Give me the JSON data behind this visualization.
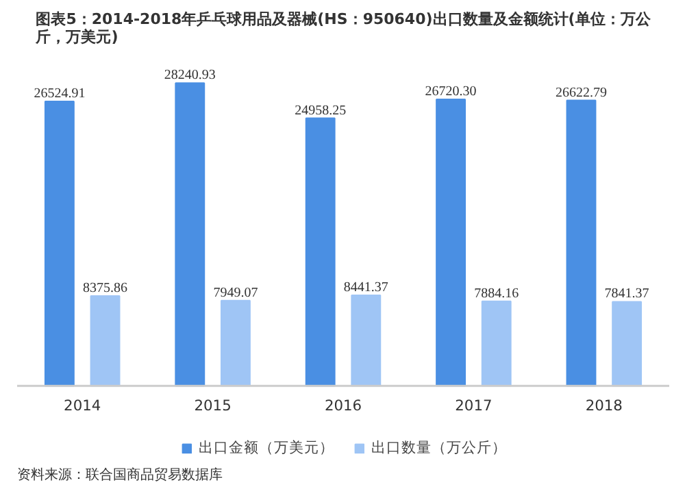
{
  "chart_data": {
    "type": "bar",
    "title": "图表5：2014-2018年乒乓球用品及器械(HS：950640)出口数量及金额统计(单位：万公斤，万美元)",
    "categories": [
      "2014",
      "2015",
      "2016",
      "2017",
      "2018"
    ],
    "series": [
      {
        "name": "出口金额（万美元）",
        "color": "#4a8fe3",
        "values": [
          26524.91,
          28240.93,
          24958.25,
          26720.3,
          26622.79
        ],
        "value_labels": [
          "26524.91",
          "28240.93",
          "24958.25",
          "26720.30",
          "26622.79"
        ]
      },
      {
        "name": "出口数量（万公斤）",
        "color": "#9fc5f5",
        "values": [
          8375.86,
          7949.07,
          8441.37,
          7884.16,
          7841.37
        ],
        "value_labels": [
          "8375.86",
          "7949.07",
          "8441.37",
          "7884.16",
          "7841.37"
        ]
      }
    ],
    "legend": "bottom",
    "annotations": [
      "资料来源：联合国商品贸易数据库"
    ]
  }
}
